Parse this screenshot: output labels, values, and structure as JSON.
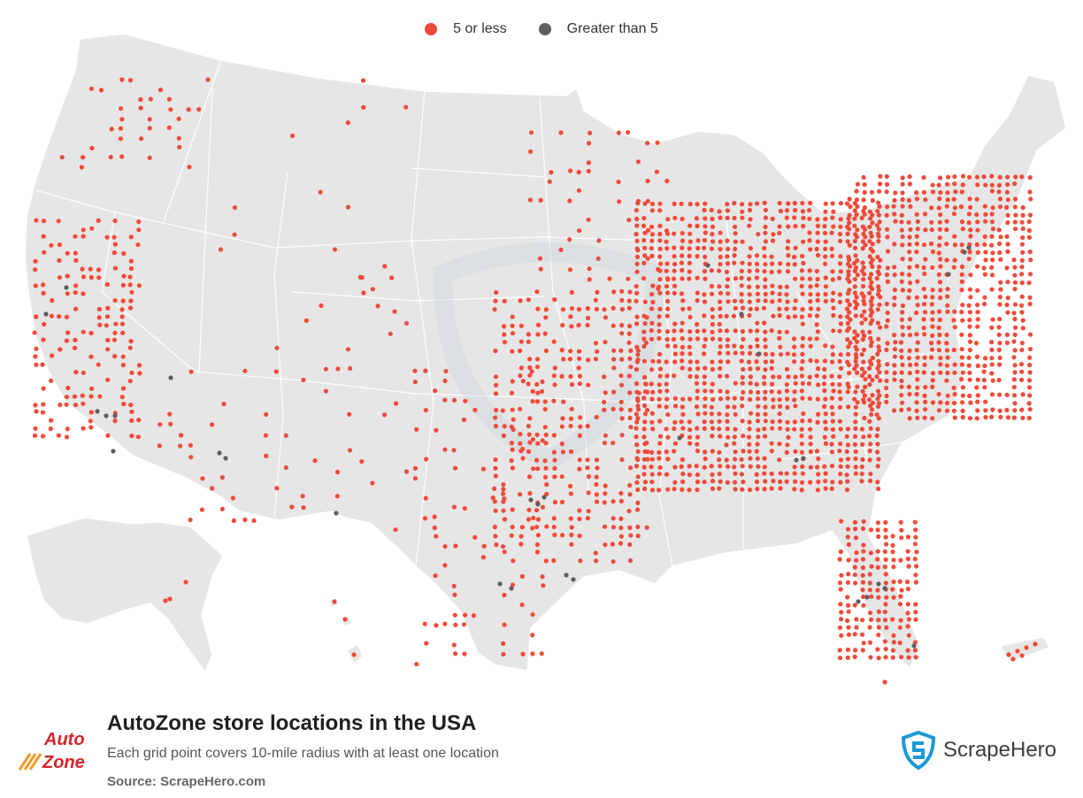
{
  "legend": {
    "items": [
      {
        "label": "5 or less",
        "color": "#f04a3a"
      },
      {
        "label": "Greater than 5",
        "color": "#5f5f5f"
      }
    ]
  },
  "map": {
    "land_color": "#e6e6e6",
    "border_color": "#ffffff",
    "low_color": "#f04a3a",
    "high_color": "#5f5f5f",
    "watermark": "shield-logo-watermark"
  },
  "footer": {
    "title": "AutoZone store locations in the USA",
    "subtitle": "Each grid point covers 10-mile radius with at least one location",
    "source": "Source: ScrapeHero.com",
    "logo_lines": [
      "Auto",
      "Zone"
    ],
    "brand": "ScrapeHero",
    "logo_color": "#d8232a",
    "brand_icon_color": "#1a9ad6"
  }
}
